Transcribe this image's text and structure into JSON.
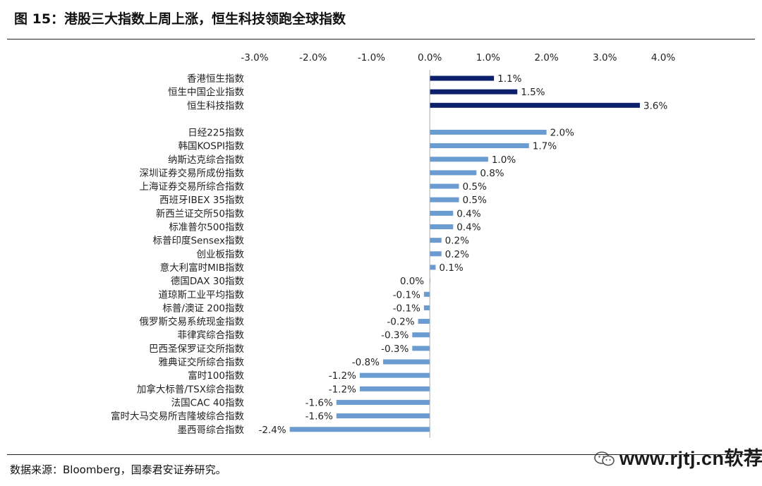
{
  "figure": {
    "title": "图 15：港股三大指数上周上涨，恒生科技领跑全球指数",
    "source": "数据来源：Bloomberg，国泰君安证券研究。"
  },
  "watermark": {
    "text": "www.rjtj.cn软荐网",
    "icon": "wechat-icon"
  },
  "chart_data": {
    "type": "bar",
    "orientation": "horizontal",
    "xlim": [
      -3.0,
      4.0
    ],
    "x_ticks": [
      "-3.0%",
      "-2.0%",
      "-1.0%",
      "0.0%",
      "1.0%",
      "2.0%",
      "3.0%",
      "4.0%"
    ],
    "x_tick_values": [
      -3,
      -2,
      -1,
      0,
      1,
      2,
      3,
      4
    ],
    "x_axis_position": "top",
    "grid": false,
    "legend": "none",
    "colors": {
      "hk_group": "#0b1f6b",
      "global_group": "#6a9bd1"
    },
    "groups": [
      {
        "color_key": "hk_group",
        "categories": [
          "香港恒生指数",
          "恒生中国企业指数",
          "恒生科技指数"
        ],
        "values": [
          1.1,
          1.5,
          3.6
        ],
        "labels": [
          "1.1%",
          "1.5%",
          "3.6%"
        ]
      },
      {
        "color_key": "global_group",
        "categories": [
          "日经225指数",
          "韩国KOSPI指数",
          "纳斯达克综合指数",
          "深圳证券交易所成份指数",
          "上海证券交易所综合指数",
          "西班牙IBEX 35指数",
          "新西兰证交所50指数",
          "标准普尔500指数",
          "标普印度Sensex指数",
          "创业板指数",
          "意大利富时MIB指数",
          "德国DAX 30指数",
          "道琼斯工业平均指数",
          "标普/澳证 200指数",
          "俄罗斯交易系统现金指数",
          "菲律宾综合指数",
          "巴西圣保罗证交所指数",
          "雅典证交所综合指数",
          "富时100指数",
          "加拿大标普/TSX综合指数",
          "法国CAC 40指数",
          "富时大马交易所吉隆坡综合指数",
          "墨西哥综合指数"
        ],
        "values": [
          2.0,
          1.7,
          1.0,
          0.8,
          0.5,
          0.5,
          0.4,
          0.4,
          0.2,
          0.2,
          0.1,
          0.0,
          -0.1,
          -0.1,
          -0.2,
          -0.3,
          -0.3,
          -0.8,
          -1.2,
          -1.2,
          -1.6,
          -1.6,
          -2.4
        ],
        "labels": [
          "2.0%",
          "1.7%",
          "1.0%",
          "0.8%",
          "0.5%",
          "0.5%",
          "0.4%",
          "0.4%",
          "0.2%",
          "0.2%",
          "0.1%",
          "0.0%",
          "-0.1%",
          "-0.1%",
          "-0.2%",
          "-0.3%",
          "-0.3%",
          "-0.8%",
          "-1.2%",
          "-1.2%",
          "-1.6%",
          "-1.6%",
          "-2.4%"
        ]
      }
    ]
  }
}
